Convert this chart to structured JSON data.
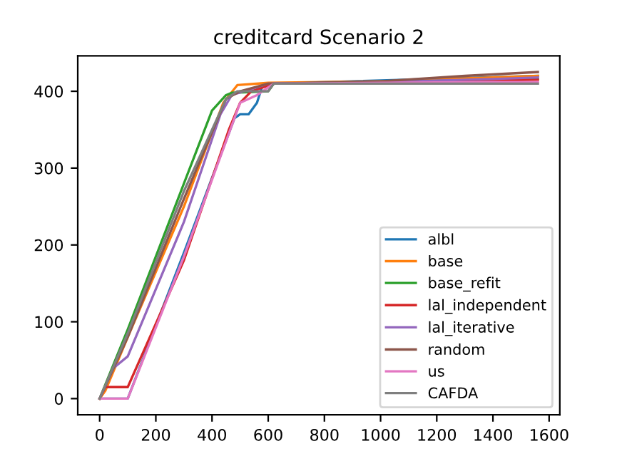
{
  "chart_data": {
    "type": "line",
    "title": "creditcard Scenario 2",
    "xlim": [
      -78,
      1638
    ],
    "ylim": [
      -21,
      446
    ],
    "xticks": [
      0,
      200,
      400,
      600,
      800,
      1000,
      1200,
      1400,
      1600
    ],
    "yticks": [
      0,
      100,
      200,
      300,
      400
    ],
    "legend": "bottom right",
    "grid": false,
    "series": [
      {
        "name": "albl",
        "color": "#1f77b4",
        "x": [
          0,
          100,
          300,
          480,
          500,
          530,
          560,
          580,
          620,
          1560
        ],
        "values": [
          0,
          0,
          190,
          365,
          370,
          370,
          385,
          408,
          410,
          420
        ]
      },
      {
        "name": "base",
        "color": "#ff7f0e",
        "x": [
          0,
          20,
          100,
          300,
          440,
          490,
          600,
          1000,
          1400,
          1560
        ],
        "values": [
          0,
          10,
          80,
          250,
          385,
          408,
          411,
          413,
          418,
          420
        ]
      },
      {
        "name": "base_refit",
        "color": "#2ca02c",
        "x": [
          0,
          100,
          300,
          400,
          450,
          470,
          600,
          620,
          1560
        ],
        "values": [
          0,
          90,
          280,
          375,
          395,
          398,
          400,
          410,
          416
        ]
      },
      {
        "name": "lal_independent",
        "color": "#d62728",
        "x": [
          0,
          20,
          100,
          300,
          460,
          500,
          540,
          620,
          1000,
          1400,
          1560
        ],
        "values": [
          0,
          15,
          15,
          180,
          350,
          385,
          400,
          410,
          412,
          414,
          415
        ]
      },
      {
        "name": "lal_iterative",
        "color": "#9467bd",
        "x": [
          0,
          50,
          100,
          300,
          430,
          470,
          600,
          1000,
          1400,
          1560
        ],
        "values": [
          0,
          40,
          55,
          230,
          370,
          395,
          410,
          412,
          416,
          418
        ]
      },
      {
        "name": "random",
        "color": "#8c564b",
        "x": [
          0,
          100,
          300,
          450,
          500,
          600,
          1000,
          1300,
          1560
        ],
        "values": [
          0,
          80,
          260,
          390,
          400,
          410,
          413,
          420,
          425
        ]
      },
      {
        "name": "us",
        "color": "#e377c2",
        "x": [
          0,
          100,
          300,
          500,
          560,
          620,
          1000,
          1400,
          1560
        ],
        "values": [
          0,
          0,
          185,
          385,
          395,
          410,
          411,
          412,
          412
        ]
      },
      {
        "name": "CAFDA",
        "color": "#7f7f7f",
        "x": [
          0,
          100,
          300,
          450,
          490,
          600,
          620,
          1000,
          1400,
          1560
        ],
        "values": [
          0,
          85,
          270,
          390,
          400,
          400,
          410,
          410,
          410,
          410
        ]
      }
    ]
  }
}
